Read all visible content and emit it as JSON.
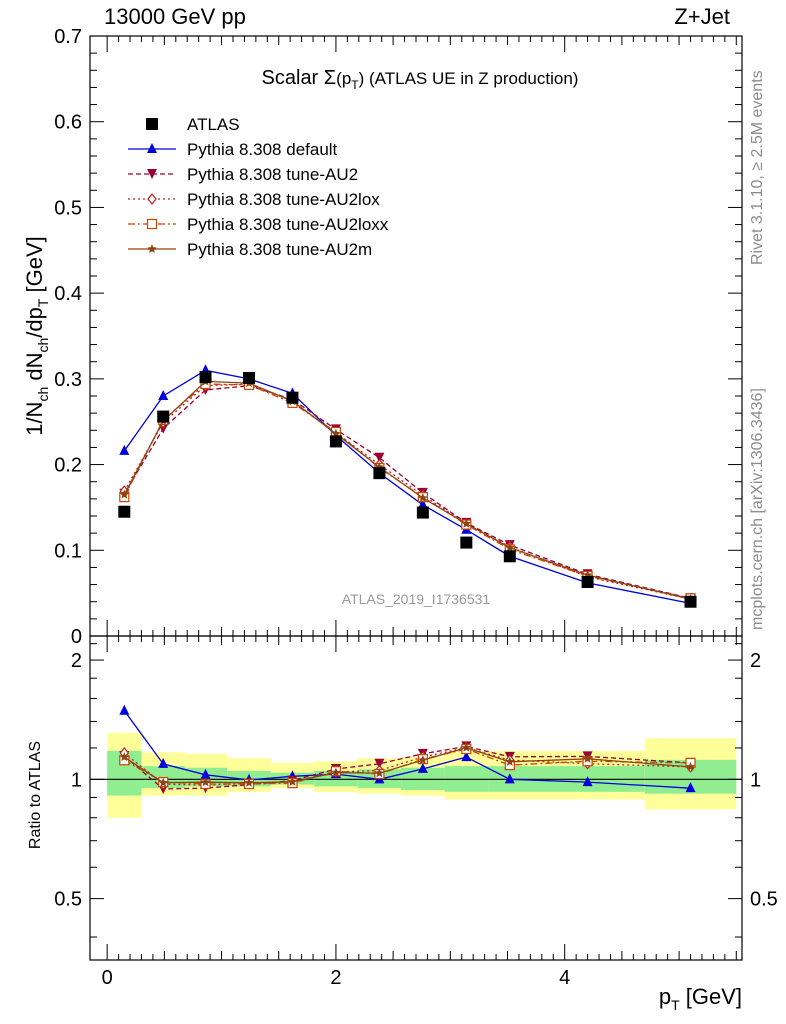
{
  "header": {
    "left": "13000 GeV pp",
    "right": "Z+Jet"
  },
  "plot_title": {
    "prefix": "Scalar ",
    "sigma": "Σ",
    "open": "(p",
    "sub": "T",
    "close": ")",
    "suffix": " (ATLAS UE in Z production)"
  },
  "side_text": {
    "rivet": "Rivet 3.1.10, ≥ 2.5M events",
    "mcplots": "mcplots.cern.ch [arXiv:1306.3436]"
  },
  "watermark": "ATLAS_2019_I1736531",
  "ylabel_main": {
    "p1": "1/N",
    "s1": "ch",
    "p2": " dN",
    "s2": "ch",
    "p3": "/dp",
    "s3": "T",
    "p4": " [GeV]"
  },
  "ylabel_ratio": "Ratio to ATLAS",
  "xlabel": {
    "p": "p",
    "sub": "T",
    "unit": " [GeV]"
  },
  "chart_data": {
    "type": "line",
    "x_range": [
      -0.15,
      5.55
    ],
    "main_y_range": [
      0,
      0.7
    ],
    "ratio_y_range": [
      0.35,
      2.3
    ],
    "ratio_log_scale": true,
    "x_ticks": [
      "0",
      "2",
      "4"
    ],
    "main_y_ticks": [
      "0",
      "0.1",
      "0.2",
      "0.3",
      "0.4",
      "0.5",
      "0.6",
      "0.7"
    ],
    "ratio_y_ticks_left": [
      "0.5",
      "1",
      "2"
    ],
    "ratio_y_ticks_right": [
      "0.5",
      "1",
      "2"
    ],
    "legend_position": "top-left",
    "x": [
      0.15,
      0.49,
      0.86,
      1.24,
      1.62,
      2.0,
      2.38,
      2.76,
      3.14,
      3.52,
      4.2,
      5.1
    ],
    "series": [
      {
        "name": "ATLAS",
        "color": "#000000",
        "marker": "square",
        "line": "none",
        "values": [
          0.145,
          0.256,
          0.302,
          0.301,
          0.278,
          0.227,
          0.19,
          0.144,
          0.109,
          0.093,
          0.063,
          0.04
        ]
      },
      {
        "name": "Pythia 8.308 default",
        "color": "#0000dd",
        "marker": "triangle-up",
        "line": "solid",
        "values": [
          0.216,
          0.28,
          0.31,
          0.3,
          0.283,
          0.234,
          0.19,
          0.153,
          0.124,
          0.093,
          0.062,
          0.038
        ]
      },
      {
        "name": "Pythia 8.308 tune-AU2",
        "color": "#990033",
        "marker": "triangle-down",
        "line": "dashed",
        "values": [
          0.166,
          0.242,
          0.287,
          0.292,
          0.276,
          0.241,
          0.208,
          0.167,
          0.132,
          0.106,
          0.072,
          0.044
        ]
      },
      {
        "name": "Pythia 8.308 tune-AU2lox",
        "color": "#bb2222",
        "marker": "diamond",
        "line": "dotted",
        "values": [
          0.169,
          0.249,
          0.292,
          0.294,
          0.274,
          0.237,
          0.2,
          0.164,
          0.131,
          0.104,
          0.069,
          0.043
        ]
      },
      {
        "name": "Pythia 8.308 tune-AU2loxx",
        "color": "#cc4400",
        "marker": "square-open",
        "line": "dashdot",
        "values": [
          0.162,
          0.252,
          0.294,
          0.293,
          0.272,
          0.238,
          0.196,
          0.162,
          0.13,
          0.101,
          0.07,
          0.044
        ]
      },
      {
        "name": "Pythia 8.308 tune-AU2m",
        "color": "#8b4513",
        "marker": "star",
        "line": "solid",
        "values": [
          0.165,
          0.251,
          0.297,
          0.295,
          0.274,
          0.236,
          0.197,
          0.161,
          0.131,
          0.103,
          0.071,
          0.043
        ]
      }
    ],
    "uncertainty_bands": {
      "bin_edges": [
        0.0,
        0.3,
        0.68,
        1.05,
        1.43,
        1.81,
        2.19,
        2.57,
        2.95,
        3.33,
        3.71,
        4.7,
        5.5
      ],
      "inner": [
        [
          0.91,
          1.18
        ],
        [
          0.95,
          1.08
        ],
        [
          0.96,
          1.07
        ],
        [
          0.96,
          1.05
        ],
        [
          0.97,
          1.04
        ],
        [
          0.96,
          1.05
        ],
        [
          0.95,
          1.06
        ],
        [
          0.94,
          1.07
        ],
        [
          0.93,
          1.08
        ],
        [
          0.93,
          1.08
        ],
        [
          0.93,
          1.08
        ],
        [
          0.92,
          1.12
        ]
      ],
      "outer": [
        [
          0.8,
          1.31
        ],
        [
          0.91,
          1.17
        ],
        [
          0.91,
          1.16
        ],
        [
          0.93,
          1.13
        ],
        [
          0.95,
          1.1
        ],
        [
          0.93,
          1.11
        ],
        [
          0.92,
          1.13
        ],
        [
          0.91,
          1.14
        ],
        [
          0.89,
          1.18
        ],
        [
          0.89,
          1.18
        ],
        [
          0.89,
          1.18
        ],
        [
          0.84,
          1.27
        ]
      ],
      "inner_color": "#90ee90",
      "outer_color": "#ffff99"
    }
  }
}
